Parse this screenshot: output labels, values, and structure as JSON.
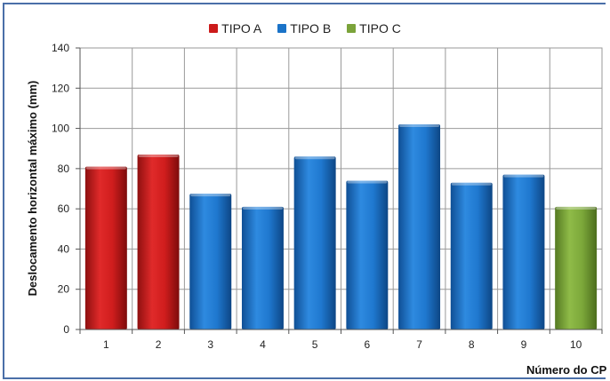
{
  "chart_data": {
    "type": "bar",
    "categories": [
      "1",
      "2",
      "3",
      "4",
      "5",
      "6",
      "7",
      "8",
      "9",
      "10"
    ],
    "values": [
      81,
      87,
      67.5,
      61,
      86,
      74,
      102,
      73,
      77,
      61
    ],
    "groups": [
      "TIPO A",
      "TIPO A",
      "TIPO B",
      "TIPO B",
      "TIPO B",
      "TIPO B",
      "TIPO B",
      "TIPO B",
      "TIPO B",
      "TIPO C"
    ],
    "legend": [
      {
        "name": "TIPO A",
        "color": "#cc1a1a"
      },
      {
        "name": "TIPO B",
        "color": "#1a73c8"
      },
      {
        "name": "TIPO C",
        "color": "#7ba33a"
      }
    ],
    "legend_position": "top-center",
    "ylabel": "Deslocamento horizontal máximo (mm)",
    "xlabel": "Número do CP",
    "ylim": [
      0,
      140
    ],
    "yticks": [
      "0",
      "20",
      "40",
      "60",
      "80",
      "100",
      "120",
      "140"
    ],
    "grid": true
  }
}
